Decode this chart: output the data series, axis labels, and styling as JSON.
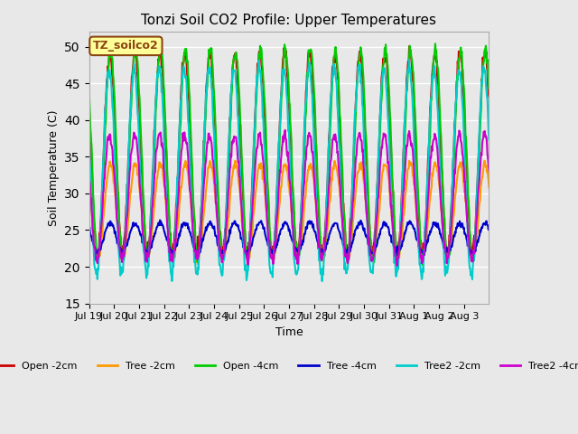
{
  "title": "Tonzi Soil CO2 Profile: Upper Temperatures",
  "xlabel": "Time",
  "ylabel": "Soil Temperature (C)",
  "ylim": [
    15,
    52
  ],
  "yticks": [
    15,
    20,
    25,
    30,
    35,
    40,
    45,
    50
  ],
  "background_color": "#e8e8e8",
  "series": {
    "Open -2cm": {
      "color": "#cc0000",
      "lw": 1.5
    },
    "Tree -2cm": {
      "color": "#ff9900",
      "lw": 1.5
    },
    "Open -4cm": {
      "color": "#00cc00",
      "lw": 1.5
    },
    "Tree -4cm": {
      "color": "#0000cc",
      "lw": 1.5
    },
    "Tree2 -2cm": {
      "color": "#00cccc",
      "lw": 1.5
    },
    "Tree2 -4cm": {
      "color": "#cc00cc",
      "lw": 1.5
    }
  },
  "annotation_text": "TZ_soilco2",
  "annotation_color": "#8B4513",
  "annotation_bg": "#ffff99",
  "grid_color": "#ffffff",
  "n_days": 16,
  "x_tick_labels": [
    "Jul 19",
    "Jul 20",
    "Jul 21",
    "Jul 22",
    "Jul 23",
    "Jul 24",
    "Jul 25",
    "Jul 26",
    "Jul 27",
    "Jul 28",
    "Jul 29",
    "Jul 30",
    "Jul 31",
    "Aug 1",
    "Aug 2",
    "Aug 3"
  ]
}
